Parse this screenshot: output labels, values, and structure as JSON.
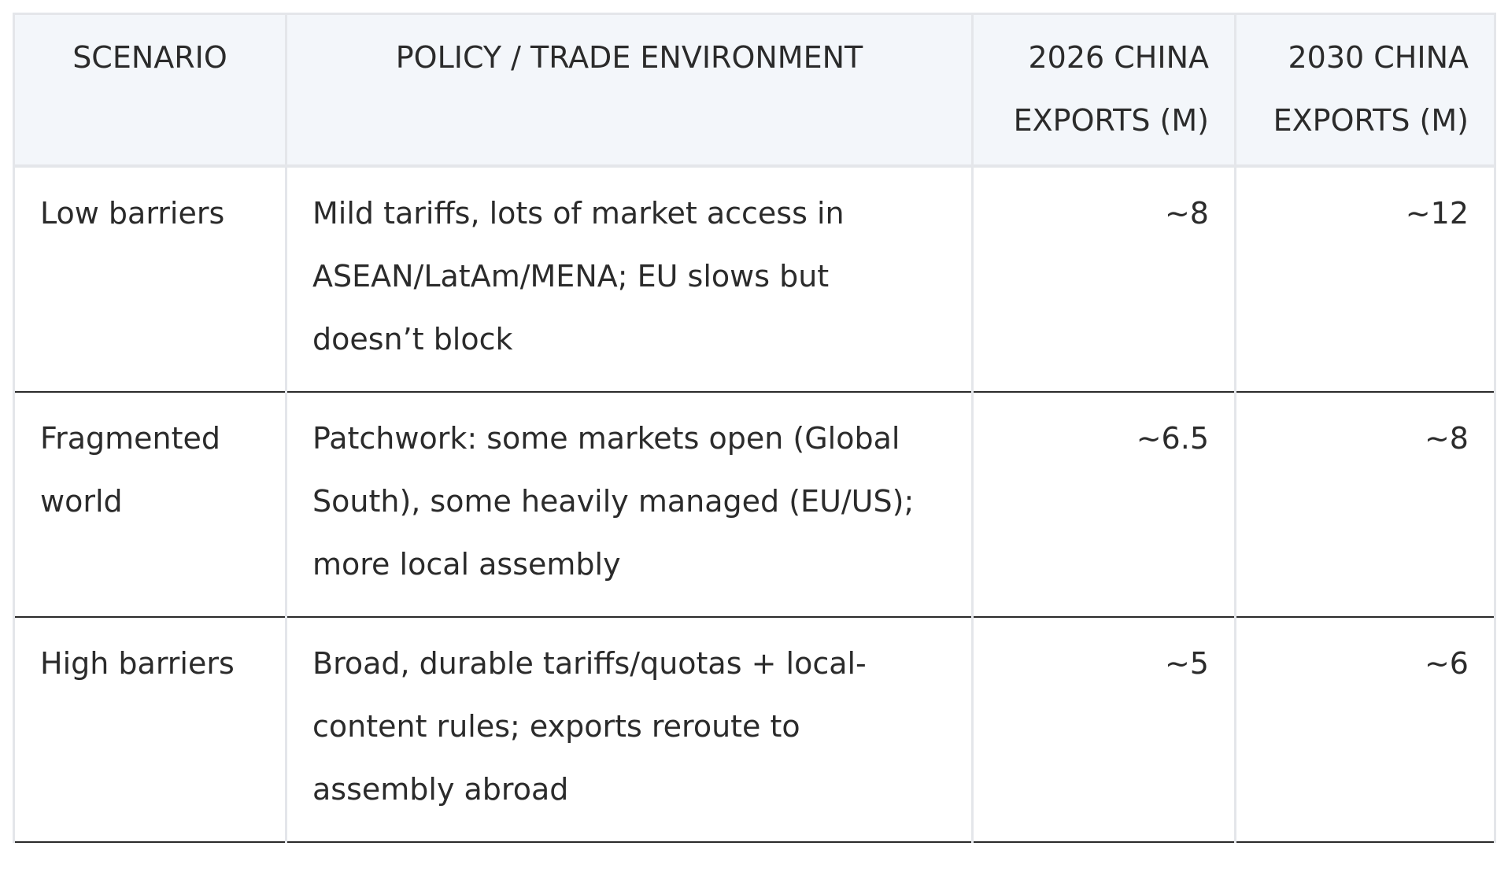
{
  "table": {
    "headers": [
      "Scenario",
      "Policy / trade environment",
      "2026 China exports (M)",
      "2030 China exports (M)"
    ],
    "rows": [
      {
        "scenario": "Low barriers",
        "policy": "Mild tariffs, lots of market access in ASEAN/LatAm/MENA; EU slows but doesn’t block",
        "exports_2026": "~8",
        "exports_2030": "~12"
      },
      {
        "scenario": "Fragmented world",
        "policy": "Patchwork: some markets open (Global South), some heavily managed (EU/US); more local assembly",
        "exports_2026": "~6.5",
        "exports_2030": "~8"
      },
      {
        "scenario": "High barriers",
        "policy": "Broad, durable tariffs/quotas + local-content rules; exports reroute to assembly abroad",
        "exports_2026": "~5",
        "exports_2030": "~6"
      }
    ]
  }
}
